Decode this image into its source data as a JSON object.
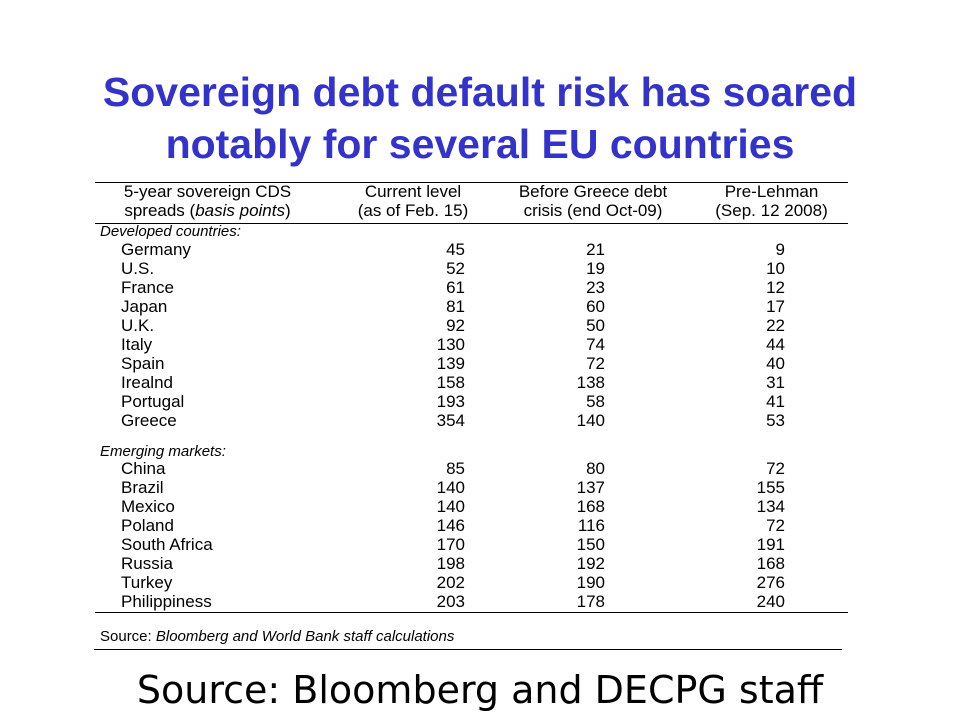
{
  "slide": {
    "title_line1": "Sovereign debt default risk has soared",
    "title_line2": "notably for several EU countries",
    "source": "Source: Bloomberg and DECPG staff",
    "title_color": "#3333cc"
  },
  "table": {
    "headers": [
      {
        "line1": "5-year sovereign CDS",
        "line2": "spreads (basis points)"
      },
      {
        "line1": "Current level",
        "line2": "(as of Feb. 15)"
      },
      {
        "line1": "Before Greece debt",
        "line2": "crisis (end Oct-09)"
      },
      {
        "line1": "Pre-Lehman",
        "line2": "(Sep. 12 2008)"
      }
    ],
    "developed_label": "Developed countries:",
    "developed": [
      {
        "country": "Germany",
        "current": "45",
        "before_greece": "21",
        "pre_lehman": "9"
      },
      {
        "country": "U.S.",
        "current": "52",
        "before_greece": "19",
        "pre_lehman": "10"
      },
      {
        "country": "France",
        "current": "61",
        "before_greece": "23",
        "pre_lehman": "12"
      },
      {
        "country": "Japan",
        "current": "81",
        "before_greece": "60",
        "pre_lehman": "17"
      },
      {
        "country": "U.K.",
        "current": "92",
        "before_greece": "50",
        "pre_lehman": "22"
      },
      {
        "country": "Italy",
        "current": "130",
        "before_greece": "74",
        "pre_lehman": "44"
      },
      {
        "country": "Spain",
        "current": "139",
        "before_greece": "72",
        "pre_lehman": "40"
      },
      {
        "country": "Irealnd",
        "current": "158",
        "before_greece": "138",
        "pre_lehman": "31"
      },
      {
        "country": "Portugal",
        "current": "193",
        "before_greece": "58",
        "pre_lehman": "41"
      },
      {
        "country": "Greece",
        "current": "354",
        "before_greece": "140",
        "pre_lehman": "53"
      }
    ],
    "emerging_label": "Emerging markets:",
    "emerging": [
      {
        "country": "China",
        "current": "85",
        "before_greece": "80",
        "pre_lehman": "72"
      },
      {
        "country": "Brazil",
        "current": "140",
        "before_greece": "137",
        "pre_lehman": "155"
      },
      {
        "country": "Mexico",
        "current": "140",
        "before_greece": "168",
        "pre_lehman": "134"
      },
      {
        "country": "Poland",
        "current": "146",
        "before_greece": "116",
        "pre_lehman": "72"
      },
      {
        "country": "South Africa",
        "current": "170",
        "before_greece": "150",
        "pre_lehman": "191"
      },
      {
        "country": "Russia",
        "current": "198",
        "before_greece": "192",
        "pre_lehman": "168"
      },
      {
        "country": "Turkey",
        "current": "202",
        "before_greece": "190",
        "pre_lehman": "276"
      },
      {
        "country": "Philippiness",
        "current": "203",
        "before_greece": "178",
        "pre_lehman": "240"
      }
    ],
    "note_prefix": "Source: ",
    "note_italic": "Bloomberg and World Bank staff calculations"
  }
}
